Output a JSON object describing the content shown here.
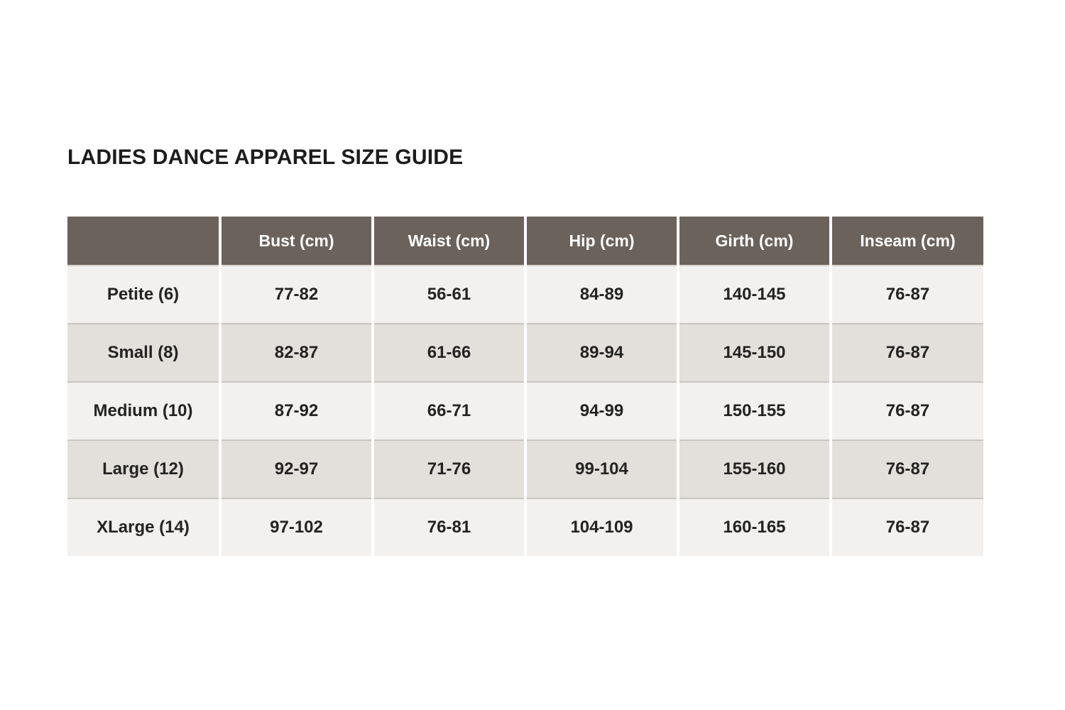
{
  "title": "LADIES DANCE APPAREL SIZE GUIDE",
  "table": {
    "columns": [
      "",
      "Bust (cm)",
      "Waist (cm)",
      "Hip (cm)",
      "Girth (cm)",
      "Inseam (cm)"
    ],
    "rows": [
      {
        "label": "Petite (6)",
        "values": [
          "77-82",
          "56-61",
          "84-89",
          "140-145",
          "76-87"
        ]
      },
      {
        "label": "Small (8)",
        "values": [
          "82-87",
          "61-66",
          "89-94",
          "145-150",
          "76-87"
        ]
      },
      {
        "label": "Medium (10)",
        "values": [
          "87-92",
          "66-71",
          "94-99",
          "150-155",
          "76-87"
        ]
      },
      {
        "label": "Large (12)",
        "values": [
          "92-97",
          "71-76",
          "99-104",
          "155-160",
          "76-87"
        ]
      },
      {
        "label": "XLarge (14)",
        "values": [
          "97-102",
          "76-81",
          "104-109",
          "160-165",
          "76-87"
        ]
      }
    ],
    "colors": {
      "header_bg": "#6b625b",
      "header_text": "#ffffff",
      "row_light": "#f2f1ef",
      "row_dark": "#e3dfdb",
      "row_border": "#c9c5c1",
      "body_text": "#232323",
      "title_text": "#1c1c1c"
    }
  }
}
